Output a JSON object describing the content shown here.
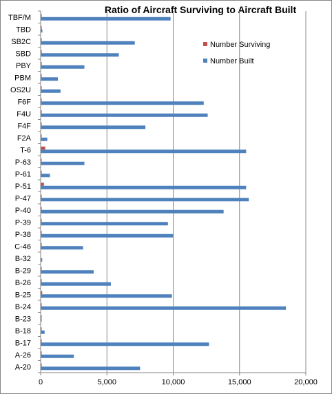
{
  "chart_data": {
    "type": "bar",
    "orientation": "horizontal",
    "title": "Ratio of Aircraft Surviving to Aircraft Built",
    "categories": [
      "TBF/M",
      "TBD",
      "SB2C",
      "SBD",
      "PBY",
      "PBM",
      "OS2U",
      "F6F",
      "F4U",
      "F4F",
      "F2A",
      "T-6",
      "P-63",
      "P-61",
      "P-51",
      "P-47",
      "P-40",
      "P-39",
      "P-38",
      "C-46",
      "B-32",
      "B-29",
      "B-26",
      "B-25",
      "B-24",
      "B-23",
      "B-18",
      "B-17",
      "A-26",
      "A-20"
    ],
    "series": [
      {
        "name": "Number Surviving",
        "color": "#c0504d",
        "values": [
          50,
          10,
          20,
          40,
          60,
          5,
          30,
          60,
          80,
          40,
          2,
          350,
          20,
          5,
          250,
          40,
          40,
          30,
          30,
          20,
          0,
          30,
          10,
          120,
          20,
          2,
          10,
          50,
          50,
          20
        ]
      },
      {
        "name": "Number Built",
        "color": "#4f81bd",
        "values": [
          9800,
          130,
          7100,
          5900,
          3300,
          1300,
          1500,
          12300,
          12600,
          7900,
          500,
          15500,
          3300,
          700,
          15500,
          15700,
          13800,
          9600,
          10000,
          3200,
          120,
          4000,
          5300,
          9900,
          18500,
          30,
          300,
          12700,
          2500,
          7500
        ]
      }
    ],
    "xlim": [
      0,
      20000
    ],
    "xticks": [
      0,
      5000,
      10000,
      15000,
      20000
    ],
    "xtick_labels": [
      "0",
      "5,000",
      "10,000",
      "15,000",
      "20,000"
    ],
    "grid": true,
    "legend": "top-right"
  }
}
